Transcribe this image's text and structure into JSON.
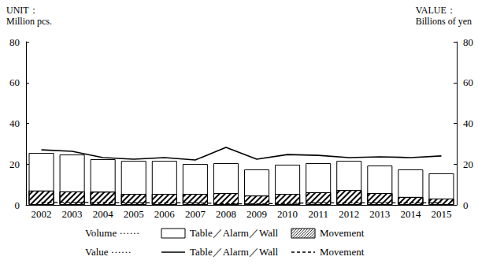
{
  "chart_data": {
    "type": "bar",
    "y_label": "UNIT：\nMillion pcs.",
    "y2_label": "VALUE：\nBillions of yen",
    "categories": [
      "2002",
      "2003",
      "2004",
      "2005",
      "2006",
      "2007",
      "2008",
      "2009",
      "2010",
      "2011",
      "2012",
      "2013",
      "2014",
      "2015"
    ],
    "ylim": [
      0,
      80
    ],
    "yticks": [
      0,
      20,
      40,
      60,
      80
    ],
    "y2lim": [
      0,
      80
    ],
    "y2ticks": [
      0,
      20,
      40,
      60,
      80
    ],
    "series": [
      {
        "name": "Table／Alarm／Wall",
        "group": "Volume ······",
        "type": "bar",
        "color": "#ffffff",
        "values": [
          25.5,
          24.7,
          22.4,
          21.6,
          21.6,
          20.1,
          20.5,
          17.4,
          19.7,
          20.5,
          21.6,
          19.3,
          17.4,
          15.5
        ]
      },
      {
        "name": "Movement",
        "group": "Volume ······",
        "type": "bar",
        "color": "#000000",
        "values": [
          7.0,
          6.6,
          6.5,
          5.4,
          5.4,
          5.4,
          5.8,
          4.6,
          5.4,
          6.2,
          7.3,
          5.8,
          3.9,
          3.1
        ]
      },
      {
        "name": "Table／Alarm／Wall",
        "group": "Value ······",
        "type": "line",
        "color": "#000000",
        "line_style": "solid",
        "axis": "y2",
        "values": [
          27.0,
          26.3,
          23.2,
          22.4,
          23.2,
          22.0,
          28.2,
          22.4,
          24.7,
          24.3,
          23.2,
          23.6,
          23.2,
          24.0
        ]
      },
      {
        "name": "Movement",
        "group": "Value ······",
        "type": "line",
        "color": "#000000",
        "line_style": "dashed",
        "axis": "y2",
        "values": [
          1.2,
          1.2,
          1.2,
          1.0,
          1.0,
          1.0,
          0.6,
          0.5,
          0.8,
          1.0,
          1.0,
          1.0,
          1.0,
          1.0
        ]
      }
    ]
  }
}
